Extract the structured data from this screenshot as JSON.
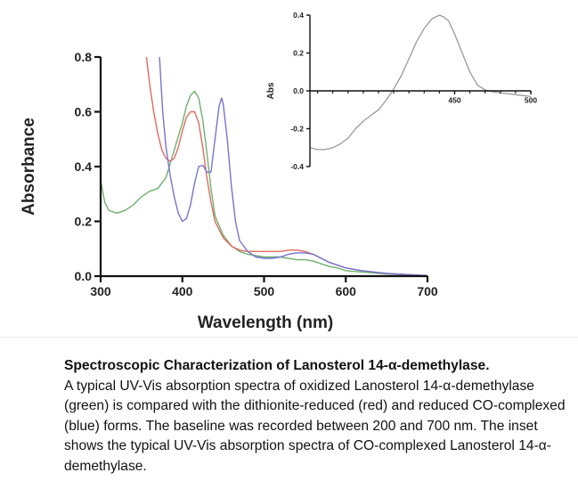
{
  "chart_data": [
    {
      "type": "line",
      "xlabel": "Wavelength (nm)",
      "ylabel": "Absorbance",
      "xlim": [
        300,
        700
      ],
      "ylim": [
        0,
        0.8
      ],
      "xticks": [
        "300",
        "400",
        "500",
        "600",
        "700"
      ],
      "yticks": [
        "0.0",
        "0.2",
        "0.4",
        "0.6",
        "0.8"
      ],
      "xtick_values": [
        300,
        400,
        500,
        600,
        700
      ],
      "ytick_values": [
        0,
        0.2,
        0.4,
        0.6,
        0.8
      ],
      "grid": false,
      "series": [
        {
          "color": "#6fb06f",
          "x": [
            300,
            305,
            310,
            320,
            330,
            340,
            350,
            360,
            370,
            380,
            390,
            400,
            405,
            410,
            415,
            420,
            425,
            430,
            435,
            440,
            450,
            460,
            470,
            480,
            490,
            500,
            510,
            520,
            530,
            540,
            550,
            560,
            570,
            580,
            590,
            600,
            620,
            650,
            680,
            700
          ],
          "y": [
            0.35,
            0.27,
            0.24,
            0.23,
            0.24,
            0.26,
            0.29,
            0.31,
            0.32,
            0.36,
            0.46,
            0.56,
            0.62,
            0.66,
            0.675,
            0.65,
            0.57,
            0.45,
            0.32,
            0.22,
            0.15,
            0.11,
            0.09,
            0.08,
            0.075,
            0.07,
            0.07,
            0.07,
            0.065,
            0.06,
            0.06,
            0.055,
            0.045,
            0.035,
            0.03,
            0.02,
            0.015,
            0.008,
            0.004,
            0.002
          ]
        },
        {
          "color": "#e06b5f",
          "x": [
            356,
            360,
            365,
            370,
            375,
            380,
            385,
            390,
            395,
            400,
            405,
            410,
            415,
            420,
            425,
            430,
            435,
            440,
            450,
            460,
            470,
            480,
            490,
            500,
            510,
            520,
            530,
            540,
            550,
            560,
            570,
            580,
            590,
            600,
            620,
            650,
            680,
            700
          ],
          "y": [
            0.8,
            0.7,
            0.6,
            0.52,
            0.46,
            0.43,
            0.42,
            0.43,
            0.47,
            0.53,
            0.58,
            0.6,
            0.6,
            0.56,
            0.47,
            0.36,
            0.27,
            0.2,
            0.14,
            0.11,
            0.095,
            0.09,
            0.09,
            0.09,
            0.09,
            0.09,
            0.095,
            0.095,
            0.09,
            0.08,
            0.065,
            0.05,
            0.04,
            0.03,
            0.02,
            0.01,
            0.005,
            0.002
          ]
        },
        {
          "color": "#7474cf",
          "x": [
            372,
            376,
            380,
            385,
            390,
            395,
            400,
            405,
            410,
            415,
            420,
            425,
            430,
            435,
            440,
            445,
            448,
            450,
            455,
            460,
            465,
            470,
            480,
            490,
            500,
            510,
            520,
            530,
            540,
            550,
            560,
            570,
            580,
            590,
            600,
            620,
            650,
            680,
            700
          ],
          "y": [
            0.8,
            0.6,
            0.47,
            0.37,
            0.29,
            0.23,
            0.2,
            0.21,
            0.26,
            0.34,
            0.4,
            0.405,
            0.38,
            0.38,
            0.5,
            0.62,
            0.65,
            0.63,
            0.5,
            0.33,
            0.2,
            0.13,
            0.09,
            0.07,
            0.065,
            0.065,
            0.07,
            0.08,
            0.085,
            0.085,
            0.08,
            0.065,
            0.05,
            0.04,
            0.03,
            0.02,
            0.01,
            0.005,
            0.002
          ]
        }
      ]
    },
    {
      "type": "line",
      "xlabel": "",
      "ylabel": "Abs",
      "xlim": [
        355,
        500
      ],
      "ylim": [
        -0.4,
        0.4
      ],
      "xticks": [
        "450",
        "500"
      ],
      "yticks": [
        "0.4",
        "0.2",
        "0.0",
        "-0.2",
        "-0.4"
      ],
      "xtick_values": [
        450,
        500
      ],
      "ytick_values": [
        0.4,
        0.2,
        0.0,
        -0.2,
        -0.4
      ],
      "grid": false,
      "series": [
        {
          "color": "#9a9a9a",
          "x": [
            355,
            360,
            365,
            370,
            375,
            380,
            385,
            390,
            395,
            400,
            405,
            410,
            415,
            420,
            425,
            430,
            435,
            440,
            443,
            446,
            450,
            455,
            460,
            465,
            470,
            475,
            480,
            485,
            490,
            495,
            500
          ],
          "y": [
            -0.3,
            -0.31,
            -0.31,
            -0.3,
            -0.28,
            -0.25,
            -0.2,
            -0.16,
            -0.13,
            -0.1,
            -0.05,
            0.01,
            0.08,
            0.17,
            0.26,
            0.33,
            0.38,
            0.4,
            0.39,
            0.37,
            0.3,
            0.2,
            0.1,
            0.03,
            0.005,
            -0.005,
            -0.01,
            -0.015,
            -0.02,
            -0.025,
            -0.03
          ]
        }
      ]
    }
  ],
  "caption": {
    "title": "Spectroscopic Characterization of Lanosterol 14-α-demethylase.",
    "body": "A typical UV-Vis absorption spectra of oxidized Lanosterol 14-α-demethylase (green) is compared with the dithionite-reduced (red) and reduced CO-complexed (blue) forms. The baseline was recorded between 200 and 700 nm. The inset shows the typical UV-Vis absorption spectra of CO-complexed Lanosterol 14-α-demethylase."
  }
}
